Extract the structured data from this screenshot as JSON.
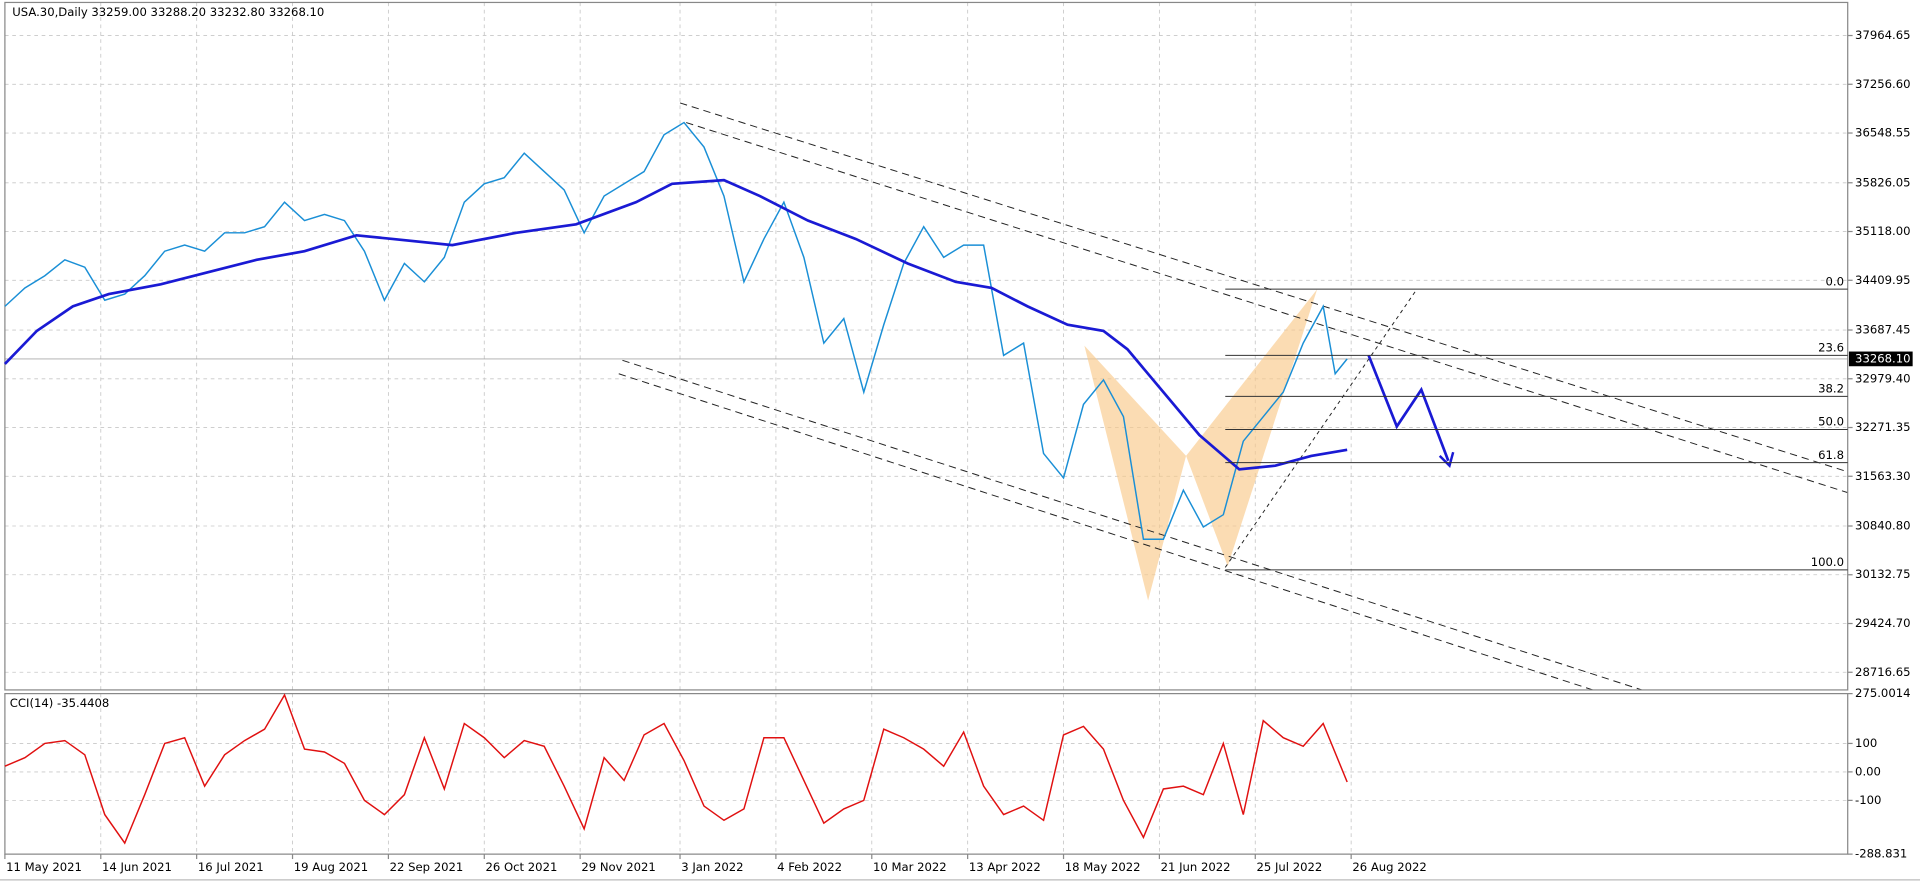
{
  "chart_data": [
    {
      "type": "line",
      "title": "USA.30,Daily  33259.00 33288.20 33232.80 33268.10",
      "series": [
        {
          "color": "#1a8fd6",
          "x": [
            0,
            5,
            10,
            15,
            20,
            25,
            30,
            35,
            40,
            45,
            50,
            55,
            60,
            65,
            70,
            75,
            80,
            85,
            90,
            95,
            100,
            105,
            110,
            115,
            120,
            125,
            130,
            135,
            140,
            145,
            150,
            155,
            160,
            165,
            170,
            175,
            180,
            185,
            190,
            195,
            200,
            205,
            210,
            215,
            220,
            225,
            230,
            235,
            240,
            245,
            250,
            255,
            260,
            265,
            270,
            275,
            280,
            285,
            290,
            295,
            300,
            305,
            310,
            315,
            320,
            325,
            330,
            333,
            336
          ],
          "values": [
            34031,
            34298,
            34476,
            34707,
            34600,
            34120,
            34209,
            34476,
            34832,
            34921,
            34832,
            35099,
            35099,
            35188,
            35544,
            35277,
            35366,
            35277,
            34832,
            34120,
            34654,
            34387,
            34743,
            35544,
            35811,
            35900,
            36256,
            35989,
            35722,
            35099,
            35633,
            35811,
            35989,
            36523,
            36701,
            36345,
            35633,
            34387,
            35010,
            35544,
            34743,
            33497,
            33853,
            32785,
            33764,
            34654,
            35188,
            34743,
            34921,
            34921,
            33319,
            33497,
            31895,
            31539,
            32607,
            32963,
            32429,
            30649,
            30649,
            31361,
            30827,
            31005,
            32073,
            32429,
            32785,
            33497,
            34031,
            33052,
            33268
          ]
        },
        {
          "color": "#1a1ad4",
          "x": [
            0,
            8,
            17,
            26,
            39,
            51,
            63,
            75,
            88,
            97,
            112,
            128,
            143,
            158,
            167,
            180,
            189,
            201,
            213,
            226,
            238,
            247,
            256,
            266,
            275,
            281,
            290,
            299,
            309,
            318,
            327,
            336
          ],
          "values": [
            33194,
            33675,
            34031,
            34209,
            34351,
            34529,
            34707,
            34832,
            35063,
            35010,
            34921,
            35099,
            35223,
            35544,
            35811,
            35864,
            35633,
            35277,
            35010,
            34654,
            34387,
            34298,
            34031,
            33764,
            33675,
            33408,
            32785,
            32162,
            31663,
            31717,
            31859,
            31948
          ]
        }
      ],
      "xlim": [
        0,
        461.3
      ],
      "xticks": [
        {
          "value": 0,
          "label": "11 May 2021"
        },
        {
          "value": 24,
          "label": "14 Jun 2021"
        },
        {
          "value": 48,
          "label": "16 Jul 2021"
        },
        {
          "value": 72,
          "label": "19 Aug 2021"
        },
        {
          "value": 96,
          "label": "22 Sep 2021"
        },
        {
          "value": 120,
          "label": "26 Oct 2021"
        },
        {
          "value": 144,
          "label": "29 Nov 2021"
        },
        {
          "value": 169,
          "label": "3 Jan 2022"
        },
        {
          "value": 193,
          "label": "4 Feb 2022"
        },
        {
          "value": 217,
          "label": "10 Mar 2022"
        },
        {
          "value": 241,
          "label": "13 Apr 2022"
        },
        {
          "value": 265,
          "label": "18 May 2022"
        },
        {
          "value": 289,
          "label": "21 Jun 2022"
        },
        {
          "value": 313,
          "label": "25 Jul 2022"
        },
        {
          "value": 337,
          "label": "26 Aug 2022"
        }
      ],
      "ylim": [
        28460,
        38445
      ],
      "yticks": [
        37964.65,
        {
          "value": 37256.6,
          "label": "37256.60"
        },
        36548.55,
        35826.05,
        {
          "value": 35118,
          "label": "35118.00"
        },
        34409.95,
        33687.45,
        {
          "value": 32979.4,
          "label": "32979.40"
        },
        32271.35,
        {
          "value": 31563.3,
          "label": "31563.30"
        },
        {
          "value": 30840.8,
          "label": "30840.80"
        },
        30132.75,
        {
          "value": 29424.7,
          "label": "29424.70"
        },
        28716.65
      ],
      "grid": true,
      "last_price": {
        "value": 33268.1,
        "label": "33268.10"
      },
      "fibonacci": {
        "high": 34281,
        "low": 30204,
        "levels": [
          {
            "value": 0,
            "label": "0.0"
          },
          23.6,
          38.2,
          {
            "value": 50,
            "label": "50.0"
          },
          61.8,
          {
            "value": 100,
            "label": "100.0"
          }
        ]
      }
    },
    {
      "type": "line",
      "title": "CCI(14) -35.4408",
      "series": [
        {
          "color": "#e01010",
          "x": [
            0,
            5,
            10,
            15,
            20,
            25,
            30,
            35,
            40,
            45,
            50,
            55,
            60,
            65,
            70,
            75,
            80,
            85,
            90,
            95,
            100,
            105,
            110,
            115,
            120,
            125,
            130,
            135,
            140,
            145,
            150,
            155,
            160,
            165,
            170,
            175,
            180,
            185,
            190,
            195,
            200,
            205,
            210,
            215,
            220,
            225,
            230,
            235,
            240,
            245,
            250,
            255,
            260,
            265,
            270,
            275,
            280,
            285,
            290,
            295,
            300,
            305,
            310,
            315,
            320,
            325,
            330,
            336
          ],
          "values": [
            20,
            50,
            100,
            110,
            60,
            -150,
            -250,
            -80,
            100,
            120,
            -50,
            60,
            110,
            150,
            270,
            80,
            70,
            30,
            -100,
            -150,
            -80,
            120,
            -60,
            170,
            120,
            50,
            110,
            90,
            -50,
            -200,
            50,
            -30,
            130,
            170,
            40,
            -120,
            -170,
            -130,
            120,
            120,
            -30,
            -180,
            -130,
            -100,
            150,
            120,
            80,
            20,
            140,
            -50,
            -150,
            -120,
            -170,
            130,
            160,
            80,
            -100,
            -230,
            -60,
            -50,
            -80,
            100,
            -150,
            180,
            120,
            90,
            170,
            -35.4408
          ]
        }
      ],
      "xlim": [
        0,
        461.3
      ],
      "ylim": [
        -288.831,
        275.0014
      ],
      "yticks": [
        275.0014,
        100,
        {
          "value": 0,
          "label": "0.00"
        },
        -100,
        -288.831
      ],
      "grid": true
    }
  ]
}
